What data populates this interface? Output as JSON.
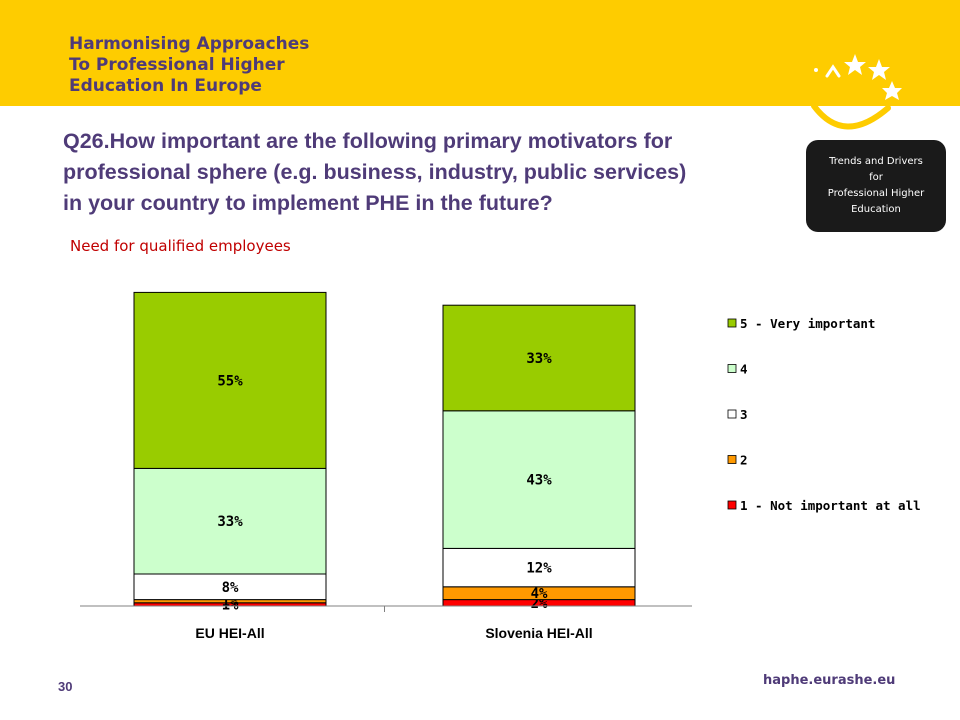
{
  "header": {
    "logo_lines": [
      "Harmonising Approaches",
      "To Professional Higher",
      "Education In Europe"
    ],
    "badge_lines": [
      "Trends and Drivers",
      "for",
      "Professional Higher",
      "Education"
    ]
  },
  "question_lines": [
    "Q26.How important are the following primary motivators for",
    "professional sphere  (e.g. business, industry, public services)",
    "in your country to implement PHE in the future?"
  ],
  "footer": {
    "page_number": "30",
    "url": "haphe.eurashe.eu"
  },
  "colors": {
    "banner": "#fecc00",
    "title": "#4f3b78",
    "subtitle": "#c00000",
    "cat5": "#99cc00",
    "cat4": "#ccffcc",
    "cat3": "#ffffff",
    "cat2": "#ff9900",
    "cat1": "#ff0000"
  },
  "chart_data": {
    "type": "bar",
    "stacked": true,
    "title": "Need for qualified employees",
    "categories": [
      "EU HEI-All",
      "Slovenia HEI-All"
    ],
    "series": [
      {
        "name": "1 - Not important at all",
        "values": [
          1,
          2
        ],
        "labels": [
          "1%",
          "2%"
        ],
        "color": "#ff0000"
      },
      {
        "name": "2",
        "values": [
          1,
          4
        ],
        "labels": [
          "1%",
          "4%"
        ],
        "color": "#ff9900"
      },
      {
        "name": "3",
        "values": [
          8,
          12
        ],
        "labels": [
          "8%",
          "12%"
        ],
        "color": "#ffffff"
      },
      {
        "name": "4",
        "values": [
          33,
          43
        ],
        "labels": [
          "33%",
          "43%"
        ],
        "color": "#ccffcc"
      },
      {
        "name": "5 - Very important",
        "values": [
          55,
          33
        ],
        "labels": [
          "55%",
          "33%"
        ],
        "color": "#99cc00"
      }
    ],
    "legend_order": [
      "5 - Very important",
      "4",
      "3",
      "2",
      "1 - Not important at all"
    ],
    "legend_position": "right",
    "grid": false
  }
}
